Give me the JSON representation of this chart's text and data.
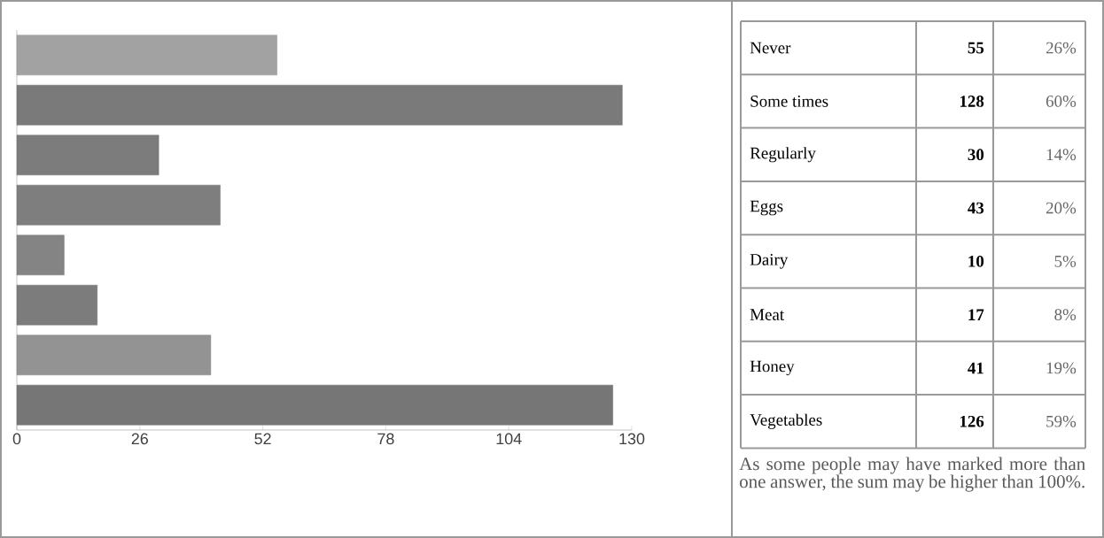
{
  "chart_data": {
    "type": "bar",
    "orientation": "horizontal",
    "categories": [
      "Never",
      "Some times",
      "Regularly",
      "Eggs",
      "Dairy",
      "Meat",
      "Honey",
      "Vegetables"
    ],
    "values": [
      55,
      128,
      30,
      43,
      10,
      17,
      41,
      126
    ],
    "colors": [
      "#a2a2a2",
      "#7a7a7a",
      "#7c7c7c",
      "#7e7e7e",
      "#848484",
      "#7c7c7c",
      "#939393",
      "#767676"
    ],
    "xlim": [
      0,
      130
    ],
    "xticks": [
      0,
      26,
      52,
      78,
      104,
      130
    ],
    "tick_labels": "x",
    "grid": false,
    "data_labels": true,
    "annotations": [
      "26%",
      "60%",
      "14%",
      "20%",
      "5%",
      "8%",
      "19%",
      "59%",
      "As some people may have marked more than one answer, the sum may be higher than 100%."
    ]
  }
}
